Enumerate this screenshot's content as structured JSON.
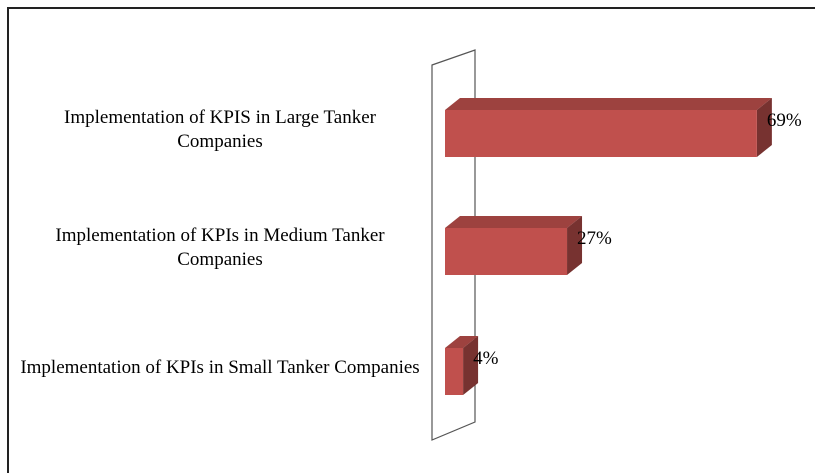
{
  "chart_data": {
    "type": "bar",
    "orientation": "horizontal",
    "three_d": true,
    "categories": [
      "Implementation of KPIS in Large Tanker Companies",
      "Implementation of KPIs in Medium Tanker Companies",
      "Implementation of KPIs in Small Tanker Companies"
    ],
    "values": [
      69,
      27,
      4
    ],
    "value_labels": [
      "69%",
      "27%",
      "4%"
    ],
    "color": "#c0504d"
  }
}
